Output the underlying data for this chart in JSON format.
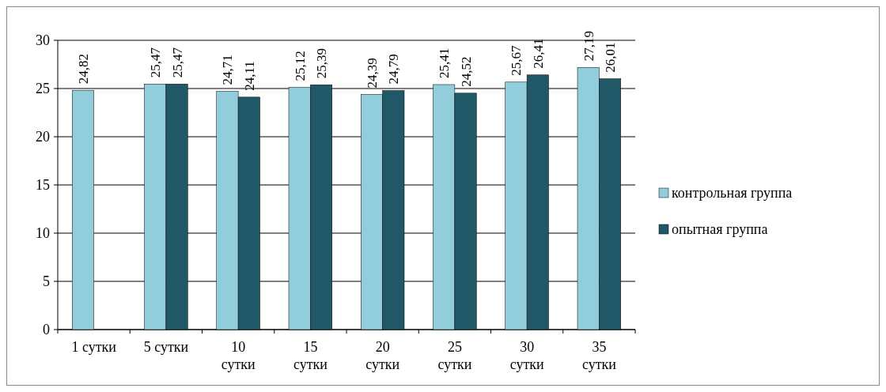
{
  "chart_data": {
    "type": "bar",
    "categories": [
      "1 сутки",
      "5 сутки",
      "10 сутки",
      "15 сутки",
      "20 сутки",
      "25 сутки",
      "30 сутки",
      "35 сутки"
    ],
    "series": [
      {
        "name": "контрольная группа",
        "color": "#92cddc",
        "values": [
          24.82,
          25.47,
          24.71,
          25.12,
          24.39,
          25.41,
          25.67,
          27.19
        ],
        "value_labels": [
          "24,82",
          "25,47",
          "24,71",
          "25,12",
          "24,39",
          "25,41",
          "25,67",
          "27,19"
        ]
      },
      {
        "name": "опытная группа",
        "color": "#215868",
        "values": [
          null,
          25.47,
          24.11,
          25.39,
          24.79,
          24.52,
          26.41,
          26.01
        ],
        "value_labels": [
          null,
          "25,47",
          "24,11",
          "25,39",
          "24,79",
          "24,52",
          "26,41",
          "26,01"
        ]
      }
    ],
    "ylim": [
      0,
      30
    ],
    "yticks": [
      0,
      5,
      10,
      15,
      20,
      25,
      30
    ],
    "grid": "y",
    "legend": "right"
  }
}
